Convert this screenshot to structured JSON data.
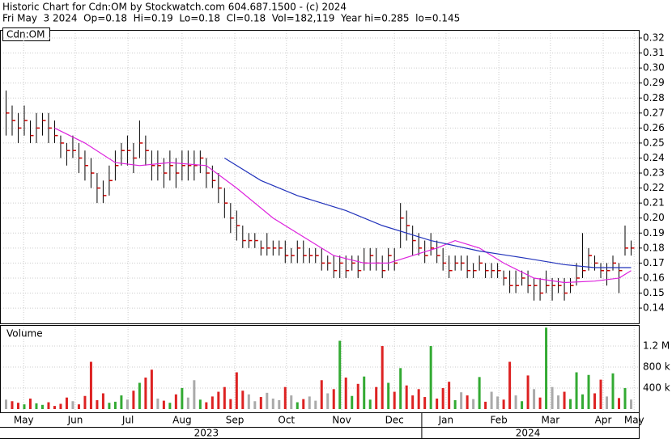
{
  "chart_data": {
    "type": "ohlc",
    "title": "Historic Chart for Cdn:OM by Stockwatch.com 604.687.1500 - (c) 2024",
    "subtitle": "Fri May  3 2024  Op=0.18  Hi=0.19  Lo=0.18  Cl=0.18  Vol=182,119  Year hi=0.285  lo=0.145",
    "symbol_label": "Cdn:OM",
    "volume_label": "Volume",
    "xlim": [
      -1,
      104
    ],
    "xticks": [
      {
        "value": 2.9,
        "label": "May"
      },
      {
        "value": 11.4,
        "label": "Jun"
      },
      {
        "value": 20.1,
        "label": "Jul"
      },
      {
        "value": 29,
        "label": "Aug"
      },
      {
        "value": 37.7,
        "label": "Sep"
      },
      {
        "value": 46.2,
        "label": "Oct"
      },
      {
        "value": 55.3,
        "label": "Nov"
      },
      {
        "value": 64,
        "label": "Dec"
      },
      {
        "value": 72.5,
        "label": "Jan"
      },
      {
        "value": 81.2,
        "label": "Feb"
      },
      {
        "value": 89.7,
        "label": "Mar"
      },
      {
        "value": 98.4,
        "label": "Apr"
      },
      {
        "value": 103.5,
        "label": "May"
      }
    ],
    "year_labels": [
      {
        "value": 33,
        "label": "2023"
      },
      {
        "value": 86,
        "label": "2024"
      }
    ],
    "year_divider": 68.5,
    "ylim": [
      0.1298,
      0.3254
    ],
    "yticks": [
      0.14,
      0.15,
      0.16,
      0.17,
      0.18,
      0.19,
      {
        "value": 0.2,
        "label": "0.20"
      },
      0.21,
      0.22,
      0.23,
      0.24,
      0.25,
      0.26,
      0.27,
      0.28,
      0.29,
      {
        "value": 0.3,
        "label": "0.30"
      },
      0.31,
      0.32
    ],
    "grid": true,
    "bar_color": "#000000",
    "close_color": "#cc0000",
    "high": [
      0.285,
      0.275,
      0.27,
      0.275,
      0.265,
      0.27,
      0.27,
      0.27,
      0.265,
      0.255,
      0.25,
      0.255,
      0.25,
      0.245,
      0.24,
      0.23,
      0.225,
      0.235,
      0.245,
      0.25,
      0.255,
      0.25,
      0.265,
      0.255,
      0.245,
      0.245,
      0.24,
      0.245,
      0.24,
      0.245,
      0.245,
      0.245,
      0.245,
      0.24,
      0.235,
      0.23,
      0.22,
      0.21,
      0.205,
      0.195,
      0.19,
      0.19,
      0.185,
      0.19,
      0.185,
      0.185,
      0.185,
      0.18,
      0.185,
      0.185,
      0.18,
      0.18,
      0.18,
      0.175,
      0.175,
      0.175,
      0.175,
      0.175,
      0.175,
      0.18,
      0.18,
      0.18,
      0.175,
      0.18,
      0.18,
      0.21,
      0.205,
      0.195,
      0.19,
      0.185,
      0.19,
      0.185,
      0.18,
      0.175,
      0.175,
      0.175,
      0.175,
      0.17,
      0.175,
      0.17,
      0.17,
      0.17,
      0.165,
      0.165,
      0.165,
      0.165,
      0.165,
      0.16,
      0.16,
      0.165,
      0.16,
      0.16,
      0.16,
      0.16,
      0.17,
      0.19,
      0.18,
      0.175,
      0.17,
      0.17,
      0.175,
      0.17,
      0.195,
      0.185
    ],
    "low": [
      0.255,
      0.255,
      0.25,
      0.255,
      0.25,
      0.25,
      0.255,
      0.25,
      0.25,
      0.24,
      0.235,
      0.24,
      0.23,
      0.225,
      0.22,
      0.21,
      0.21,
      0.215,
      0.225,
      0.235,
      0.235,
      0.23,
      0.24,
      0.235,
      0.225,
      0.225,
      0.22,
      0.225,
      0.22,
      0.225,
      0.225,
      0.225,
      0.23,
      0.22,
      0.22,
      0.21,
      0.2,
      0.19,
      0.185,
      0.18,
      0.18,
      0.18,
      0.175,
      0.175,
      0.175,
      0.175,
      0.17,
      0.17,
      0.17,
      0.17,
      0.17,
      0.17,
      0.165,
      0.165,
      0.16,
      0.16,
      0.16,
      0.165,
      0.16,
      0.165,
      0.165,
      0.165,
      0.16,
      0.165,
      0.165,
      0.18,
      0.185,
      0.175,
      0.175,
      0.17,
      0.175,
      0.17,
      0.165,
      0.16,
      0.165,
      0.165,
      0.16,
      0.16,
      0.165,
      0.16,
      0.16,
      0.16,
      0.155,
      0.15,
      0.15,
      0.155,
      0.15,
      0.145,
      0.145,
      0.15,
      0.145,
      0.15,
      0.145,
      0.15,
      0.155,
      0.16,
      0.165,
      0.165,
      0.16,
      0.155,
      0.165,
      0.15,
      0.175,
      0.175
    ],
    "close": [
      0.27,
      0.265,
      0.26,
      0.265,
      0.255,
      0.26,
      0.265,
      0.26,
      0.255,
      0.25,
      0.245,
      0.245,
      0.24,
      0.235,
      0.23,
      0.22,
      0.215,
      0.225,
      0.235,
      0.245,
      0.245,
      0.24,
      0.25,
      0.245,
      0.235,
      0.235,
      0.23,
      0.235,
      0.23,
      0.235,
      0.235,
      0.235,
      0.24,
      0.23,
      0.225,
      0.22,
      0.21,
      0.2,
      0.195,
      0.185,
      0.185,
      0.185,
      0.18,
      0.18,
      0.18,
      0.18,
      0.175,
      0.175,
      0.18,
      0.175,
      0.175,
      0.175,
      0.17,
      0.17,
      0.165,
      0.17,
      0.165,
      0.17,
      0.165,
      0.17,
      0.175,
      0.17,
      0.165,
      0.175,
      0.17,
      0.2,
      0.195,
      0.185,
      0.18,
      0.175,
      0.18,
      0.175,
      0.17,
      0.165,
      0.17,
      0.17,
      0.165,
      0.165,
      0.17,
      0.165,
      0.165,
      0.165,
      0.16,
      0.155,
      0.155,
      0.16,
      0.155,
      0.155,
      0.15,
      0.155,
      0.155,
      0.155,
      0.15,
      0.155,
      0.16,
      0.165,
      0.175,
      0.17,
      0.165,
      0.165,
      0.17,
      0.165,
      0.18,
      0.18
    ],
    "moving_averages": [
      {
        "color": "#dd22dd",
        "x": [
          8,
          13,
          18,
          22,
          27,
          33,
          38,
          44,
          50,
          54,
          59,
          63,
          67,
          71,
          74,
          78,
          82,
          87,
          92,
          97,
          101,
          103
        ],
        "values": [
          0.26,
          0.25,
          0.237,
          0.235,
          0.237,
          0.235,
          0.22,
          0.2,
          0.185,
          0.175,
          0.17,
          0.17,
          0.175,
          0.18,
          0.185,
          0.18,
          0.17,
          0.16,
          0.157,
          0.158,
          0.16,
          0.165
        ]
      },
      {
        "color": "#2233bb",
        "x": [
          36,
          42,
          48,
          56,
          62,
          70,
          78,
          86,
          92,
          97,
          103
        ],
        "values": [
          0.24,
          0.225,
          0.215,
          0.205,
          0.195,
          0.185,
          0.178,
          0.173,
          0.169,
          0.167,
          0.167
        ]
      }
    ],
    "volume": [
      180000,
      150000,
      120000,
      90000,
      200000,
      110000,
      80000,
      130000,
      60000,
      100000,
      220000,
      150000,
      90000,
      250000,
      900000,
      170000,
      300000,
      120000,
      140000,
      260000,
      180000,
      350000,
      500000,
      600000,
      750000,
      200000,
      160000,
      120000,
      280000,
      400000,
      220000,
      550000,
      180000,
      130000,
      240000,
      330000,
      420000,
      190000,
      700000,
      350000,
      280000,
      150000,
      230000,
      310000,
      200000,
      170000,
      420000,
      260000,
      130000,
      190000,
      240000,
      160000,
      550000,
      300000,
      380000,
      1300000,
      600000,
      250000,
      480000,
      620000,
      180000,
      420000,
      1200000,
      500000,
      330000,
      780000,
      450000,
      260000,
      380000,
      230000,
      1200000,
      200000,
      400000,
      520000,
      170000,
      320000,
      260000,
      190000,
      610000,
      140000,
      330000,
      240000,
      180000,
      900000,
      260000,
      150000,
      640000,
      380000,
      220000,
      1550000,
      420000,
      260000,
      330000,
      190000,
      700000,
      280000,
      650000,
      300000,
      560000,
      240000,
      680000,
      210000,
      400000,
      182119
    ],
    "vlim": [
      0,
      1585000
    ],
    "vticks": [
      {
        "value": 400000,
        "label": "400 k"
      },
      {
        "value": 800000,
        "label": "800 k"
      },
      {
        "value": 1200000,
        "label": "1.2 M"
      }
    ],
    "up_color": "#33aa33",
    "down_color": "#dd2222",
    "flat_color": "#aaaaaa"
  }
}
